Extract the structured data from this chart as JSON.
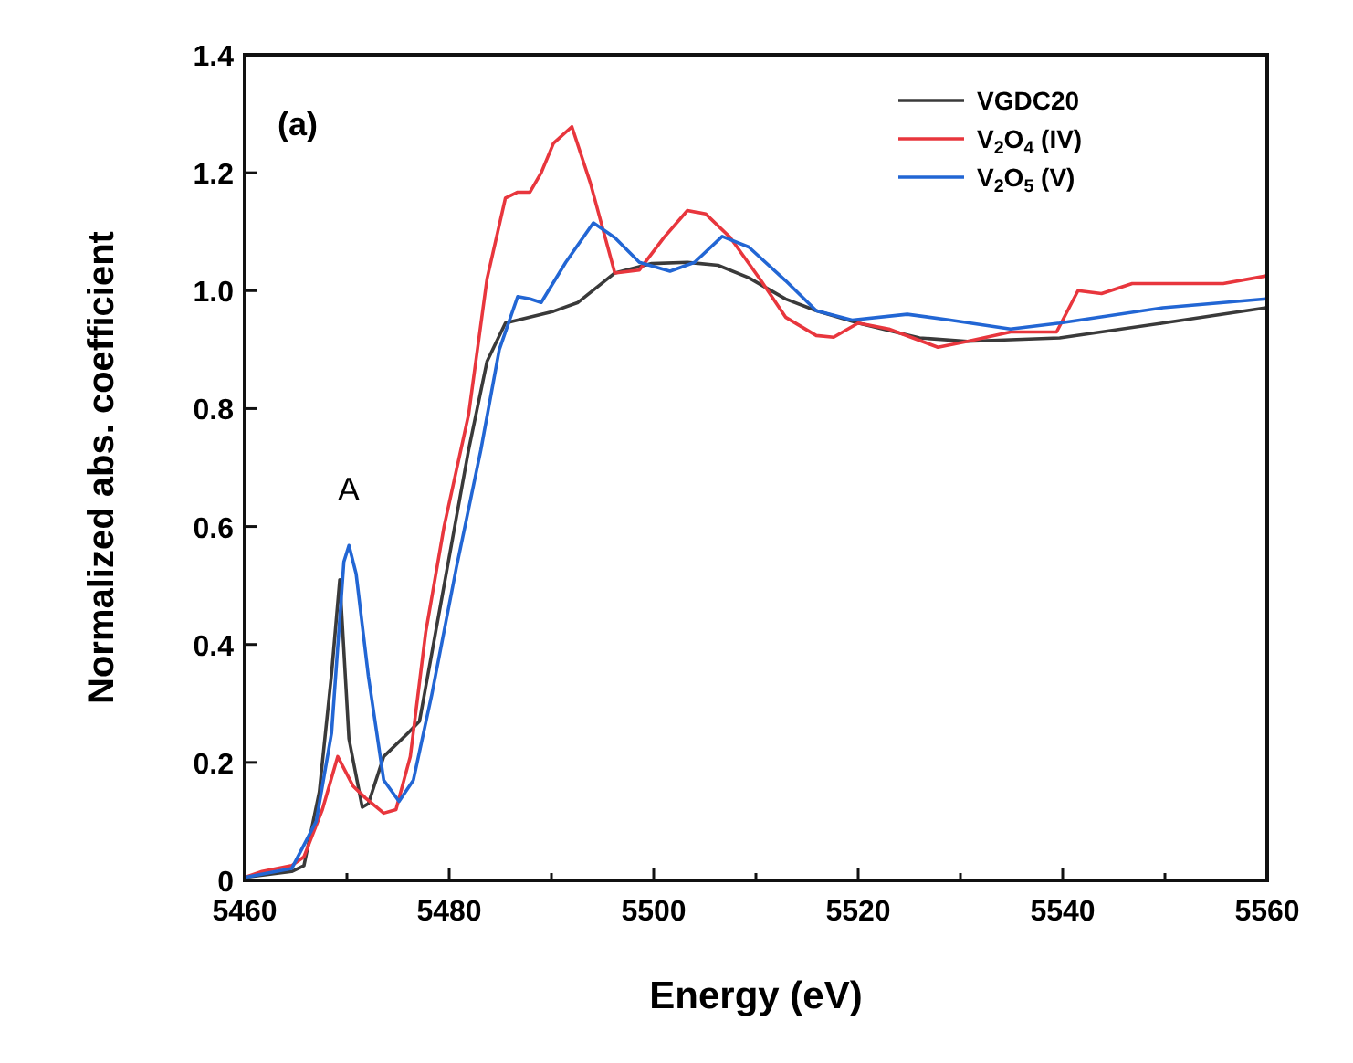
{
  "chart_data": {
    "type": "line",
    "xlabel": "Energy (eV)",
    "ylabel": "Normalized abs. coefficient",
    "xlim": [
      5460,
      5560
    ],
    "ylim": [
      0,
      1.4
    ],
    "xticks": [
      5460,
      {
        "value": 5470,
        "label": null
      },
      5480,
      {
        "value": 5490,
        "label": null
      },
      5500,
      {
        "value": 5510,
        "label": null
      },
      5520,
      {
        "value": 5530,
        "label": null
      },
      5540,
      {
        "value": 5550,
        "label": null
      },
      5560
    ],
    "yticks": [
      0.0,
      {
        "value": 0.2,
        "label": "0.2"
      },
      {
        "value": 0.4,
        "label": "0.4"
      },
      {
        "value": 0.6,
        "label": "0.6"
      },
      {
        "value": 0.8,
        "label": "0.8"
      },
      {
        "value": 1.0,
        "label": "1.0"
      },
      {
        "value": 1.2,
        "label": "1.2"
      },
      {
        "value": 1.4,
        "label": "1.4"
      }
    ],
    "grid": false,
    "legend": "top right",
    "line_style": "solid",
    "marker": "none",
    "annotations": [
      "(a)",
      "A"
    ],
    "series": [
      {
        "name": "VGDC20",
        "color": "#3a3a3a",
        "x": [
          5460,
          5464.6,
          5465.8,
          5467.3,
          5468.5,
          5469.3,
          5470.2,
          5471.5,
          5472.1,
          5473.6,
          5476,
          5477.1,
          5479.5,
          5481.9,
          5483.7,
          5485.5,
          5487.9,
          5490.2,
          5492.6,
          5496.2,
          5499.8,
          5503.3,
          5506.3,
          5509.3,
          5512.9,
          5515.9,
          5520,
          5526,
          5530.7,
          5539.7,
          5549.8,
          5559.9
        ],
        "values": [
          0.005,
          0.015,
          0.025,
          0.15,
          0.35,
          0.51,
          0.24,
          0.124,
          0.13,
          0.21,
          0.25,
          0.27,
          0.5,
          0.73,
          0.88,
          0.945,
          0.955,
          0.965,
          0.98,
          1.03,
          1.046,
          1.048,
          1.043,
          1.022,
          0.986,
          0.966,
          0.945,
          0.92,
          0.914,
          0.92,
          0.945,
          0.971
        ]
      },
      {
        "name": "V$_{2}$O$_{4}$ (IV)",
        "color": "#e8363d",
        "x": [
          5460,
          5461.7,
          5464.6,
          5465.8,
          5467.6,
          5469.1,
          5470.6,
          5471.8,
          5473.6,
          5474.8,
          5476.2,
          5477.7,
          5479.5,
          5481.9,
          5483.7,
          5485.5,
          5486.7,
          5487.9,
          5489,
          5490.2,
          5492,
          5493.8,
          5496.2,
          5498.6,
          5501,
          5503.3,
          5505.1,
          5507.5,
          5510.5,
          5512.9,
          5515.9,
          5517.6,
          5520,
          5523,
          5527.8,
          5530.7,
          5534.9,
          5539.4,
          5541.5,
          5543.8,
          5546.8,
          5555.7,
          5559.9
        ],
        "values": [
          0.005,
          0.015,
          0.025,
          0.04,
          0.12,
          0.21,
          0.16,
          0.14,
          0.114,
          0.12,
          0.21,
          0.42,
          0.6,
          0.79,
          1.02,
          1.157,
          1.167,
          1.167,
          1.2,
          1.25,
          1.278,
          1.183,
          1.03,
          1.035,
          1.09,
          1.136,
          1.13,
          1.09,
          1.017,
          0.955,
          0.924,
          0.921,
          0.945,
          0.935,
          0.904,
          0.914,
          0.93,
          0.93,
          1.0,
          0.995,
          1.012,
          1.012,
          1.025
        ]
      },
      {
        "name": "V$_{2}$O$_{5}$ (V)",
        "color": "#2266d4",
        "x": [
          5460,
          5464.6,
          5467,
          5468.5,
          5469.7,
          5470.2,
          5470.9,
          5472.1,
          5473.6,
          5475.1,
          5476.5,
          5478.3,
          5480.7,
          5483.1,
          5484.9,
          5486.7,
          5487.9,
          5489,
          5491.4,
          5494.1,
          5496.2,
          5498.6,
          5501.6,
          5504,
          5506.7,
          5509.3,
          5512.9,
          5515.9,
          5519.4,
          5524.8,
          5529,
          5534.9,
          5539.7,
          5549.8,
          5559.9
        ],
        "values": [
          0.005,
          0.02,
          0.1,
          0.25,
          0.54,
          0.568,
          0.52,
          0.346,
          0.17,
          0.134,
          0.17,
          0.315,
          0.53,
          0.73,
          0.9,
          0.99,
          0.986,
          0.98,
          1.048,
          1.115,
          1.09,
          1.048,
          1.033,
          1.048,
          1.092,
          1.074,
          1.017,
          0.966,
          0.95,
          0.96,
          0.95,
          0.935,
          0.945,
          0.971,
          0.986
        ]
      }
    ]
  }
}
